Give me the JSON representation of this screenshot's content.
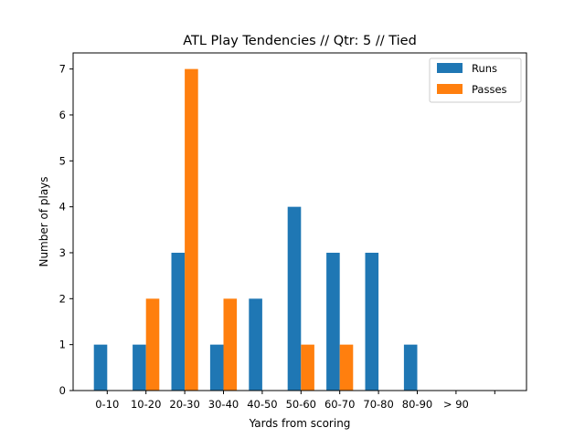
{
  "chart_data": {
    "type": "bar",
    "title": "ATL Play Tendencies // Qtr: 5 // Tied",
    "xlabel": "Yards from scoring",
    "ylabel": "Number of plays",
    "categories": [
      "0-10",
      "10-20",
      "20-30",
      "30-40",
      "40-50",
      "50-60",
      "60-70",
      "70-80",
      "80-90",
      "> 90"
    ],
    "series": [
      {
        "name": "Runs",
        "color": "#1f77b4",
        "values": [
          1,
          1,
          3,
          1,
          2,
          4,
          3,
          3,
          1,
          0
        ]
      },
      {
        "name": "Passes",
        "color": "#ff7f0e",
        "values": [
          0,
          2,
          7,
          2,
          0,
          1,
          1,
          0,
          0,
          0
        ]
      }
    ],
    "ylim": [
      0,
      7.35
    ],
    "yticks": [
      0,
      1,
      2,
      3,
      4,
      5,
      6,
      7
    ],
    "grid": false,
    "legend": "top-right"
  }
}
